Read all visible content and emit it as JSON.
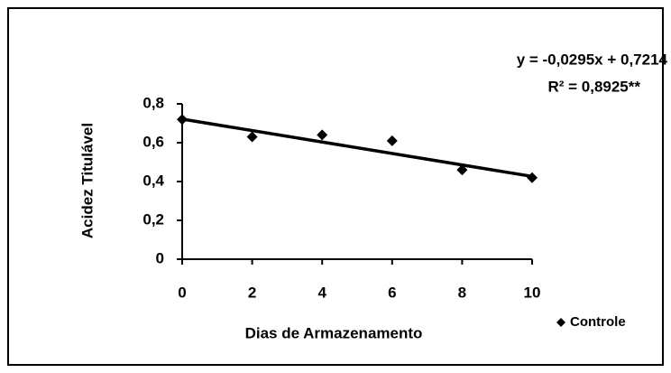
{
  "chart_data": {
    "type": "scatter",
    "x_label": "Dias de Armazenamento",
    "y_label": "Acidez Titulável",
    "x": [
      0,
      2,
      4,
      6,
      8,
      10
    ],
    "series": [
      {
        "name": "Controle",
        "color": "#000000",
        "values": [
          0.72,
          0.63,
          0.64,
          0.61,
          0.46,
          0.42
        ]
      }
    ],
    "trendline": {
      "label": "y = -0,0295x + 0,7214",
      "r2_label": "R² = 0,8925**",
      "slope": -0.0295,
      "intercept": 0.7214
    },
    "xlim": [
      0,
      10
    ],
    "xticks": [
      0,
      2,
      4,
      6,
      8,
      10
    ],
    "ylim": [
      0,
      0.8
    ],
    "yticks": [
      0,
      {
        "value": 0.2,
        "label": "0,2"
      },
      {
        "value": 0.4,
        "label": "0,4"
      },
      {
        "value": 0.6,
        "label": "0,6"
      },
      {
        "value": 0.8,
        "label": "0,8"
      }
    ],
    "legend": "lower right"
  }
}
